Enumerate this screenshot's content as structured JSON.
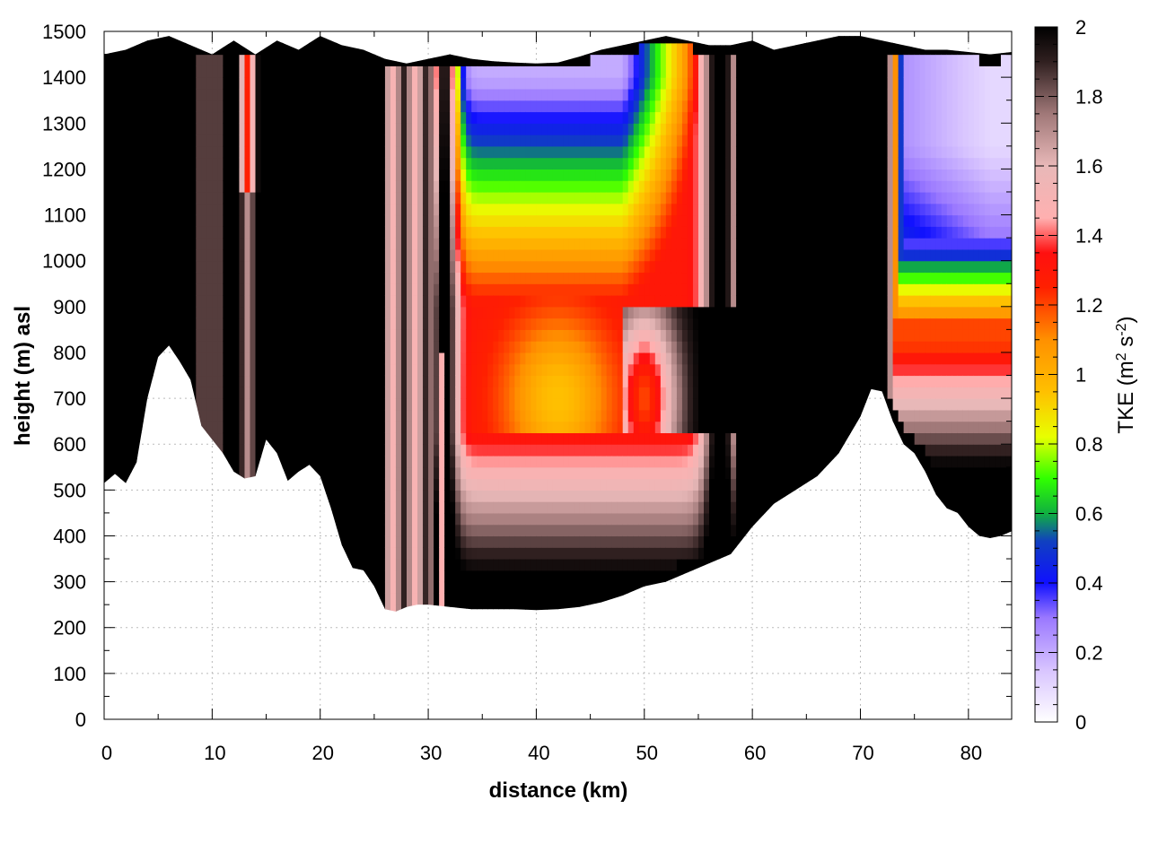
{
  "chart_data": {
    "type": "heatmap",
    "title": "",
    "xlabel": "distance (km)",
    "ylabel": "height (m) asl",
    "xlim": [
      0,
      84
    ],
    "ylim": [
      0,
      1500
    ],
    "x_ticks": [
      0,
      10,
      20,
      30,
      40,
      50,
      60,
      70,
      80
    ],
    "y_ticks": [
      0,
      100,
      200,
      300,
      400,
      500,
      600,
      700,
      800,
      900,
      1000,
      1100,
      1200,
      1300,
      1400,
      1500
    ],
    "grid": true,
    "colorbar": {
      "title_main": "TKE (m",
      "title_sup1": "2",
      "title_mid": " s",
      "title_sup2": "-2",
      "title_end": ")",
      "range": [
        0,
        2
      ],
      "ticks": [
        0,
        0.2,
        0.4,
        0.6,
        0.8,
        1,
        1.2,
        1.4,
        1.6,
        1.8,
        2
      ],
      "tick_labels": [
        "0",
        "0.2",
        "0.4",
        "0.6",
        "0.8",
        "1",
        "1.2",
        "1.4",
        "1.6",
        "1.8",
        "2"
      ],
      "placement": "right",
      "colors": [
        {
          "v": 0.0,
          "c": "#ffffff"
        },
        {
          "v": 0.15,
          "c": "#d8c4ff"
        },
        {
          "v": 0.3,
          "c": "#9a78ff"
        },
        {
          "v": 0.4,
          "c": "#1010ff"
        },
        {
          "v": 0.52,
          "c": "#1040c0"
        },
        {
          "v": 0.6,
          "c": "#10b040"
        },
        {
          "v": 0.7,
          "c": "#30ff00"
        },
        {
          "v": 0.82,
          "c": "#e8ff00"
        },
        {
          "v": 0.95,
          "c": "#ffc000"
        },
        {
          "v": 1.1,
          "c": "#ff9000"
        },
        {
          "v": 1.25,
          "c": "#ff2000"
        },
        {
          "v": 1.35,
          "c": "#ff1010"
        },
        {
          "v": 1.45,
          "c": "#ffb0b0"
        },
        {
          "v": 1.6,
          "c": "#e8b8b8"
        },
        {
          "v": 1.75,
          "c": "#a07878"
        },
        {
          "v": 1.9,
          "c": "#302020"
        },
        {
          "v": 2.0,
          "c": "#000000"
        }
      ]
    },
    "terrain": {
      "x": [
        0,
        1,
        2,
        3,
        4,
        5,
        6,
        7,
        8,
        9,
        10,
        11,
        12,
        13,
        14,
        15,
        16,
        17,
        18,
        19,
        20,
        21,
        22,
        23,
        24,
        25,
        26,
        27,
        28,
        29,
        30,
        32,
        34,
        36,
        38,
        40,
        42,
        44,
        46,
        48,
        50,
        52,
        54,
        56,
        58,
        60,
        62,
        64,
        66,
        68,
        70,
        71,
        72,
        73,
        74,
        75,
        76,
        77,
        78,
        79,
        80,
        81,
        82,
        83,
        84
      ],
      "y": [
        515,
        535,
        515,
        560,
        700,
        790,
        815,
        780,
        740,
        640,
        610,
        580,
        540,
        525,
        530,
        610,
        580,
        520,
        540,
        555,
        530,
        460,
        380,
        330,
        325,
        290,
        240,
        235,
        245,
        250,
        250,
        245,
        240,
        240,
        240,
        238,
        240,
        245,
        255,
        270,
        290,
        300,
        320,
        340,
        360,
        420,
        470,
        500,
        530,
        580,
        660,
        720,
        715,
        650,
        600,
        580,
        540,
        490,
        460,
        450,
        420,
        400,
        395,
        400,
        410
      ]
    },
    "top_boundary": {
      "x": [
        0,
        2,
        4,
        6,
        8,
        10,
        12,
        14,
        16,
        18,
        20,
        22,
        24,
        26,
        28,
        30,
        32,
        34,
        36,
        38,
        40,
        42,
        44,
        46,
        48,
        50,
        52,
        54,
        56,
        58,
        60,
        62,
        64,
        66,
        68,
        70,
        72,
        74,
        76,
        78,
        80,
        82,
        84
      ],
      "y": [
        1450,
        1460,
        1480,
        1490,
        1470,
        1450,
        1480,
        1450,
        1480,
        1460,
        1490,
        1470,
        1460,
        1440,
        1430,
        1440,
        1450,
        1440,
        1435,
        1432,
        1430,
        1432,
        1445,
        1460,
        1470,
        1480,
        1490,
        1480,
        1470,
        1470,
        1480,
        1460,
        1470,
        1480,
        1490,
        1490,
        1480,
        1470,
        1460,
        1460,
        1455,
        1450,
        1455
      ]
    },
    "features": [
      {
        "name": "plume_main",
        "x_range": [
          30.5,
          58
        ],
        "note": "high TKE core at ~40-47 km, 600-900 m; low TKE above 1100 m"
      },
      {
        "name": "plume_east",
        "x_range": [
          72.5,
          84
        ],
        "note": "low TKE aloft, high TKE near 700-900 m"
      },
      {
        "name": "column_13km",
        "x_range": [
          12.5,
          14.5
        ],
        "note": "red column 1200-1450 m"
      }
    ]
  }
}
